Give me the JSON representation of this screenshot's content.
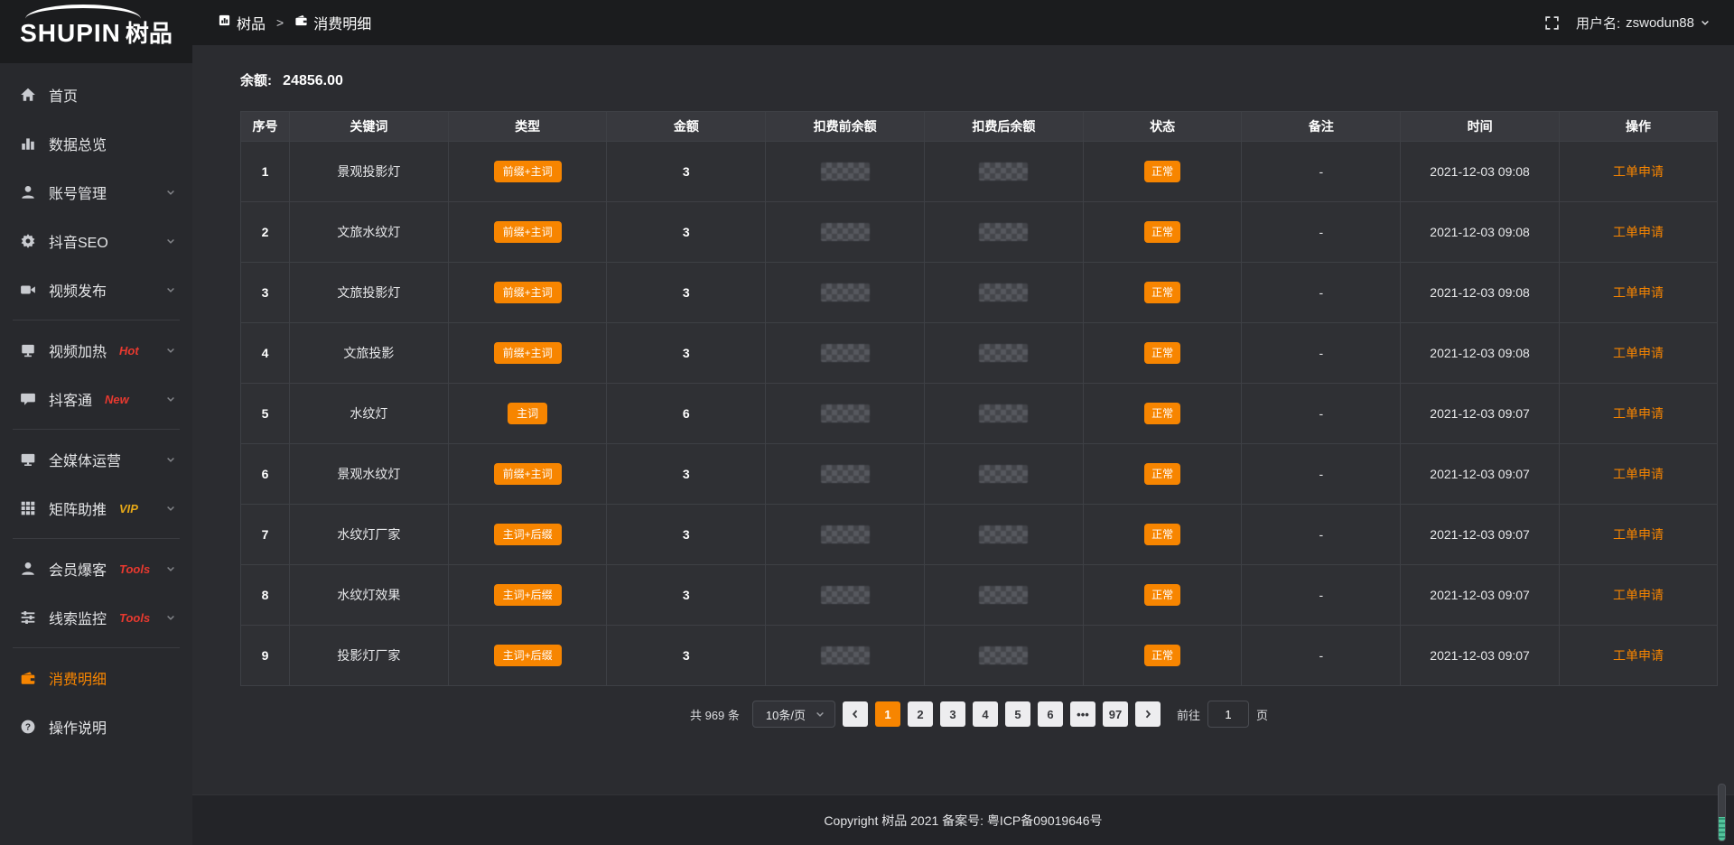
{
  "app": {
    "logo_text": "SHUPIN",
    "logo_cn": "树品"
  },
  "header": {
    "breadcrumb_1": "树品",
    "breadcrumb_sep": ">",
    "breadcrumb_2": "消费明细",
    "username_label": "用户名:",
    "username": "zswodun88"
  },
  "sidebar": {
    "items": [
      {
        "label": "首页",
        "icon": "home-icon"
      },
      {
        "label": "数据总览",
        "icon": "chart-icon"
      },
      {
        "label": "账号管理",
        "icon": "user-icon",
        "arrow": true
      },
      {
        "label": "抖音SEO",
        "icon": "gear-icon",
        "arrow": true
      },
      {
        "label": "视频发布",
        "icon": "video-icon",
        "arrow": true,
        "divider_after": true
      },
      {
        "label": "视频加热",
        "icon": "heat-icon",
        "badge": "Hot",
        "badge_color": "#e8392f",
        "arrow": true
      },
      {
        "label": "抖客通",
        "icon": "chat-icon",
        "badge": "New",
        "badge_color": "#e8392f",
        "arrow": true,
        "divider_after": true
      },
      {
        "label": "全媒体运营",
        "icon": "monitor-icon",
        "arrow": true
      },
      {
        "label": "矩阵助推",
        "icon": "grid-icon",
        "badge": "VIP",
        "badge_color": "#e6a818",
        "arrow": true,
        "divider_after": true
      },
      {
        "label": "会员爆客",
        "icon": "member-icon",
        "badge": "Tools",
        "badge_color": "#e8392f",
        "arrow": true
      },
      {
        "label": "线索监控",
        "icon": "sliders-icon",
        "badge": "Tools",
        "badge_color": "#e8392f",
        "arrow": true,
        "divider_after": true
      },
      {
        "label": "消费明细",
        "icon": "wallet-icon",
        "active": true
      },
      {
        "label": "操作说明",
        "icon": "question-icon"
      }
    ]
  },
  "main": {
    "balance_label": "余额:",
    "balance_value": "24856.00",
    "table": {
      "columns": [
        "序号",
        "关键词",
        "类型",
        "金额",
        "扣费前余额",
        "扣费后余额",
        "状态",
        "备注",
        "时间",
        "操作"
      ],
      "rows": [
        {
          "no": "1",
          "keyword": "景观投影灯",
          "type": "前缀+主词",
          "amount": "3",
          "status": "正常",
          "note": "-",
          "time": "2021-12-03 09:08",
          "action": "工单申请"
        },
        {
          "no": "2",
          "keyword": "文旅水纹灯",
          "type": "前缀+主词",
          "amount": "3",
          "status": "正常",
          "note": "-",
          "time": "2021-12-03 09:08",
          "action": "工单申请"
        },
        {
          "no": "3",
          "keyword": "文旅投影灯",
          "type": "前缀+主词",
          "amount": "3",
          "status": "正常",
          "note": "-",
          "time": "2021-12-03 09:08",
          "action": "工单申请"
        },
        {
          "no": "4",
          "keyword": "文旅投影",
          "type": "前缀+主词",
          "amount": "3",
          "status": "正常",
          "note": "-",
          "time": "2021-12-03 09:08",
          "action": "工单申请"
        },
        {
          "no": "5",
          "keyword": "水纹灯",
          "type": "主词",
          "amount": "6",
          "status": "正常",
          "note": "-",
          "time": "2021-12-03 09:07",
          "action": "工单申请"
        },
        {
          "no": "6",
          "keyword": "景观水纹灯",
          "type": "前缀+主词",
          "amount": "3",
          "status": "正常",
          "note": "-",
          "time": "2021-12-03 09:07",
          "action": "工单申请"
        },
        {
          "no": "7",
          "keyword": "水纹灯厂家",
          "type": "主词+后缀",
          "amount": "3",
          "status": "正常",
          "note": "-",
          "time": "2021-12-03 09:07",
          "action": "工单申请"
        },
        {
          "no": "8",
          "keyword": "水纹灯效果",
          "type": "主词+后缀",
          "amount": "3",
          "status": "正常",
          "note": "-",
          "time": "2021-12-03 09:07",
          "action": "工单申请"
        },
        {
          "no": "9",
          "keyword": "投影灯厂家",
          "type": "主词+后缀",
          "amount": "3",
          "status": "正常",
          "note": "-",
          "time": "2021-12-03 09:07",
          "action": "工单申请"
        }
      ],
      "censored_columns": [
        "扣费前余额",
        "扣费后余额"
      ]
    },
    "pagination": {
      "total": "共 969 条",
      "page_size": "10条/页",
      "pages": [
        "1",
        "2",
        "3",
        "4",
        "5",
        "6",
        "•••",
        "97"
      ],
      "active_page": "1",
      "goto_label": "前往",
      "goto_value": "1",
      "goto_suffix": "页"
    }
  },
  "footer": {
    "copyright": "Copyright 树品 2021 备案号: 粤ICP备09019646号"
  },
  "colors": {
    "accent_orange": "#f78500",
    "badge_red": "#e8392f",
    "badge_yellow": "#e6a818",
    "scroll_green": "#54c49c"
  }
}
